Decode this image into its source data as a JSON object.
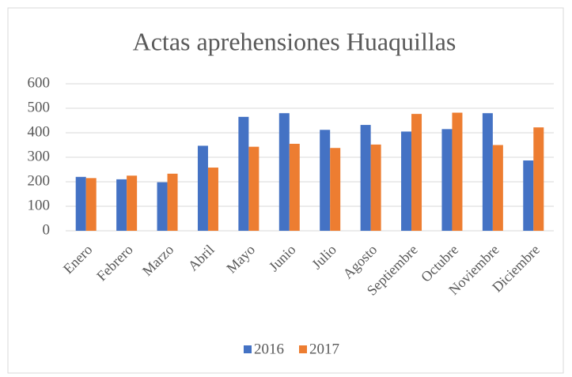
{
  "chart_data": {
    "type": "bar",
    "title": "Actas aprehensiones Huaquillas",
    "categories": [
      "Enero",
      "Febrero",
      "Marzo",
      "Abril",
      "Mayo",
      "Junio",
      "Julio",
      "Agosto",
      "Septiembre",
      "Octubre",
      "Noviembre",
      "Diciembre"
    ],
    "series": [
      {
        "name": "2016",
        "color": "#4472c4",
        "values": [
          220,
          210,
          198,
          347,
          465,
          480,
          412,
          432,
          405,
          415,
          480,
          287
        ]
      },
      {
        "name": "2017",
        "color": "#ed7d31",
        "values": [
          215,
          225,
          233,
          258,
          343,
          355,
          338,
          352,
          477,
          482,
          350,
          422
        ]
      }
    ],
    "ylim": [
      0,
      600
    ],
    "yticks": [
      0,
      100,
      200,
      300,
      400,
      500,
      600
    ],
    "grid": true,
    "legend": "bottom"
  }
}
